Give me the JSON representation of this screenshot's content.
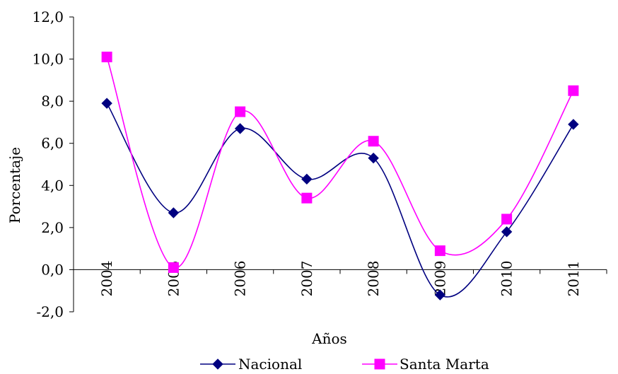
{
  "chart_data": {
    "type": "line",
    "title": "",
    "xlabel": "Años",
    "ylabel": "Porcentaje",
    "categories": [
      "2004",
      "2005",
      "2006",
      "2007",
      "2008",
      "2009",
      "2010",
      "2011"
    ],
    "ylim": [
      -2.0,
      12.0
    ],
    "yticks": [
      "-2,0",
      "0,0",
      "2,0",
      "4,0",
      "6,0",
      "8,0",
      "10,0",
      "12,0"
    ],
    "grid": false,
    "legend": "bottom",
    "smooth": true,
    "series": [
      {
        "name": "Nacional",
        "values": [
          7.9,
          2.7,
          6.7,
          4.3,
          5.3,
          -1.2,
          1.8,
          6.9
        ],
        "color": "#000080",
        "marker": "diamond"
      },
      {
        "name": "Santa Marta",
        "values": [
          10.1,
          0.1,
          7.5,
          3.4,
          6.1,
          0.9,
          2.4,
          8.5
        ],
        "color": "#FF00FF",
        "marker": "square"
      }
    ]
  }
}
